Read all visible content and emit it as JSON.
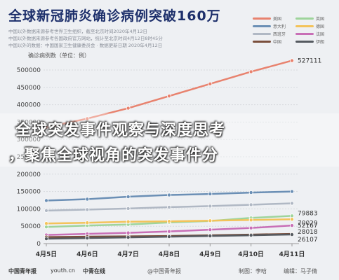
{
  "header": {
    "title": "全球新冠肺炎确诊病例突破160万",
    "notes": [
      "中国以外数据来源参考世界卫生组织，截至北京时间2020年4月12日",
      "中国以外数据来源参考各国政府官方网站，统计至北京时间4月12日8时45分",
      "中国以外的数据：中国国家卫生健康委员会 · 数据更新日期 2020年4月12日"
    ]
  },
  "overlay": {
    "line1": "全球突发事件观察与深度思考",
    "line2": "，聚焦全球视角的突发事件分"
  },
  "footer": {
    "logo1": "中国青年报",
    "logo2": "youth.cn",
    "logo3": "中青在线",
    "source": "@中国青年报",
    "producer": "制图：李晗",
    "editor": "编辑：马子倩"
  },
  "chart_data": {
    "type": "line",
    "ylabel": "确诊病例数（单位：例）",
    "ylim": [
      0,
      500000
    ],
    "yticks": [
      "0",
      "50000",
      "100000",
      "150000",
      "200000",
      "250000",
      "300000",
      "350000",
      "400000",
      "450000",
      "500000"
    ],
    "categories": [
      "4月5日",
      "4月6日",
      "4月7日",
      "4月8日",
      "4月9日",
      "4月10日",
      "4月11日"
    ],
    "series": [
      {
        "name": "美国",
        "color": "#e8826e",
        "values": [
          335000,
          360000,
          390000,
          425000,
          460000,
          495000,
          527111
        ]
      },
      {
        "name": "英国",
        "color": "#9ed49b",
        "values": [
          48000,
          52000,
          55000,
          61000,
          65000,
          74000,
          79883
        ]
      },
      {
        "name": "意大利",
        "color": "#6b8fb5",
        "values": [
          124000,
          128000,
          135000,
          140000,
          143000,
          147000,
          150000
        ]
      },
      {
        "name": "德国",
        "color": "#f3c35a",
        "values": [
          58000,
          60000,
          63000,
          64000,
          66000,
          68000,
          70029
        ]
      },
      {
        "name": "西班牙",
        "color": "#b0b8c4",
        "values": [
          95000,
          98000,
          101000,
          105000,
          108000,
          112000,
          116000
        ]
      },
      {
        "name": "法国",
        "color": "#c86fb6",
        "values": [
          25000,
          28000,
          31000,
          35000,
          40000,
          45000,
          52167
        ]
      },
      {
        "name": "中国",
        "color": "#7a4f3c",
        "values": [
          19000,
          20000,
          21000,
          22000,
          24000,
          26000,
          28018
        ]
      },
      {
        "name": "伊朗",
        "color": "#555a60",
        "values": [
          14000,
          16000,
          18000,
          20000,
          22000,
          24000,
          26107
        ]
      }
    ],
    "end_labels": [
      "527111",
      "79883",
      "70029",
      "52167",
      "28018",
      "26107"
    ],
    "grid": true,
    "legend_placement": "top-right"
  }
}
